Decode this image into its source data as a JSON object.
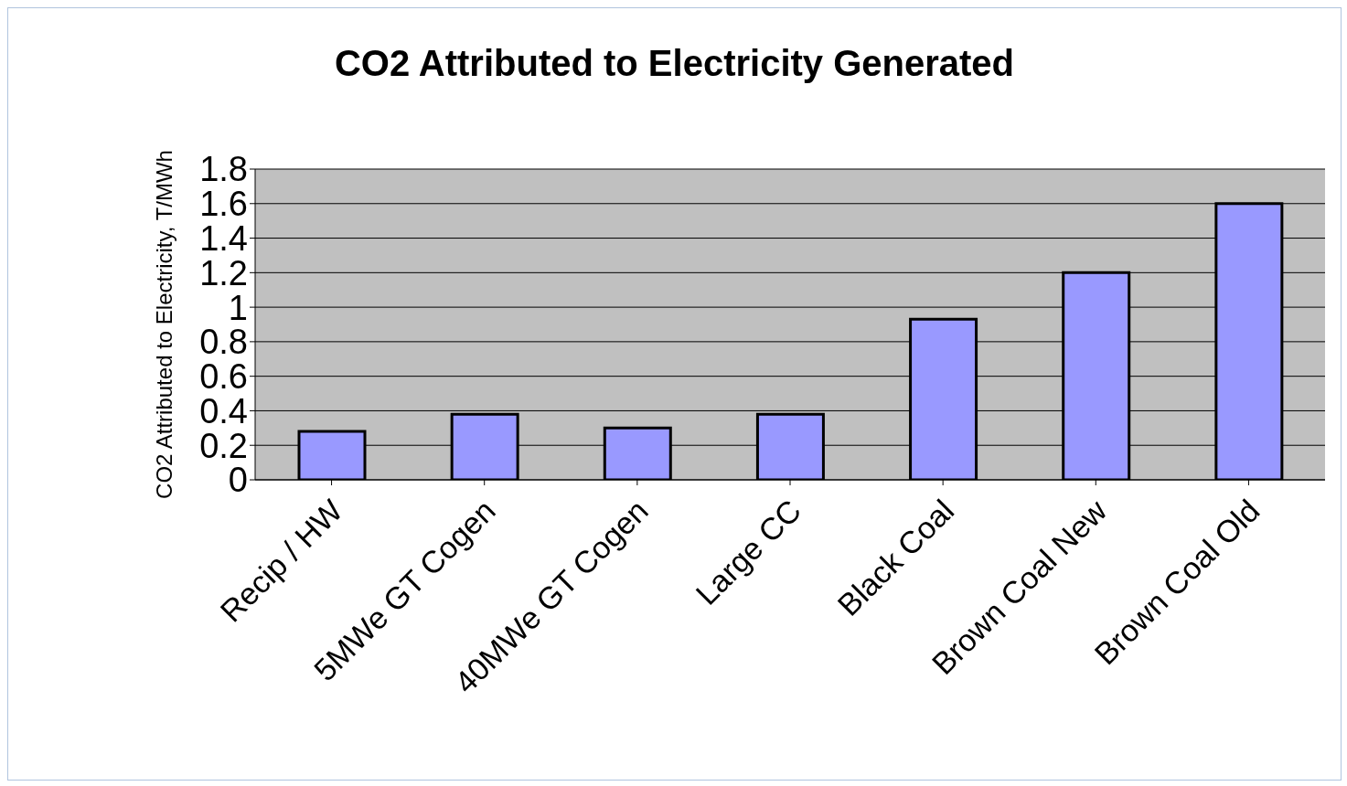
{
  "chart_data": {
    "type": "bar",
    "title": "CO2 Attributed to Electricity Generated",
    "ylabel": "CO2 Attributed to Electricity, T/MWh",
    "categories": [
      "Recip / HW",
      "5MWe GT Cogen",
      "40MWe GT Cogen",
      "Large CC",
      "Black Coal",
      "Brown Coal New",
      "Brown Coal Old"
    ],
    "values": [
      0.28,
      0.38,
      0.3,
      0.38,
      0.93,
      1.2,
      1.6
    ],
    "color": "#9999ff",
    "ylim": [
      0,
      1.8
    ],
    "yticks": [
      0,
      0.2,
      0.4,
      0.6,
      0.8,
      1,
      1.2,
      1.4,
      1.6,
      1.8
    ],
    "grid": "y"
  }
}
